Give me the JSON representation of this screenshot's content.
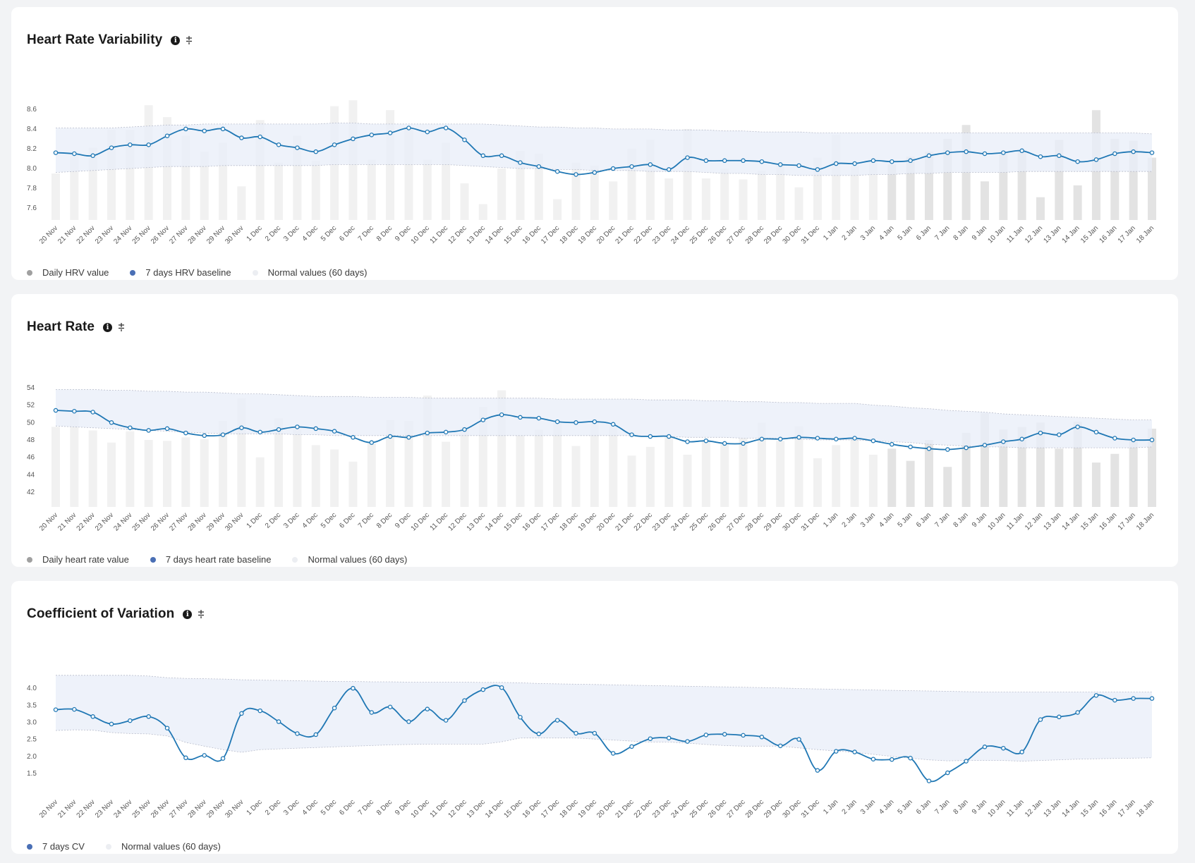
{
  "dates": [
    "20 Nov",
    "21 Nov",
    "22 Nov",
    "23 Nov",
    "24 Nov",
    "25 Nov",
    "26 Nov",
    "27 Nov",
    "28 Nov",
    "29 Nov",
    "30 Nov",
    "1 Dec",
    "2 Dec",
    "3 Dec",
    "4 Dec",
    "5 Dec",
    "6 Dec",
    "7 Dec",
    "8 Dec",
    "9 Dec",
    "10 Dec",
    "11 Dec",
    "12 Dec",
    "13 Dec",
    "14 Dec",
    "15 Dec",
    "16 Dec",
    "17 Dec",
    "18 Dec",
    "19 Dec",
    "20 Dec",
    "21 Dec",
    "22 Dec",
    "23 Dec",
    "24 Dec",
    "25 Dec",
    "26 Dec",
    "27 Dec",
    "28 Dec",
    "29 Dec",
    "30 Dec",
    "31 Dec",
    "1 Jan",
    "2 Jan",
    "3 Jan",
    "4 Jan",
    "5 Jan",
    "6 Jan",
    "7 Jan",
    "8 Jan",
    "9 Jan",
    "10 Jan",
    "11 Jan",
    "12 Jan",
    "13 Jan",
    "14 Jan",
    "15 Jan",
    "16 Jan",
    "17 Jan",
    "18 Jan"
  ],
  "colors": {
    "line": "#1f77b4",
    "band": "#e9eef8",
    "bar_light": "#f1f1f1",
    "bar_dark": "#e3e3e3",
    "grey_dot": "#a0a0a0",
    "blue_dot": "#4a6fb5",
    "light_dot": "#eceef2"
  },
  "icons": {
    "info": "info-icon",
    "toggle": "plus-minus-icon"
  },
  "charts": {
    "hrv": {
      "title": "Heart Rate Variability",
      "info_glyph": "i",
      "legend": [
        {
          "label": "Daily HRV value",
          "color": "#a0a0a0"
        },
        {
          "label": "7 days HRV baseline",
          "color": "#4a6fb5"
        },
        {
          "label": "Normal values (60 days)",
          "color": "#eceef2"
        }
      ]
    },
    "hr": {
      "title": "Heart Rate",
      "info_glyph": "i",
      "legend": [
        {
          "label": "Daily heart rate value",
          "color": "#a0a0a0"
        },
        {
          "label": "7 days heart rate baseline",
          "color": "#4a6fb5"
        },
        {
          "label": "Normal values (60 days)",
          "color": "#eceef2"
        }
      ]
    },
    "cv": {
      "title": "Coefficient of Variation",
      "info_glyph": "i",
      "legend": [
        {
          "label": "7 days CV",
          "color": "#4a6fb5"
        },
        {
          "label": "Normal values (60 days)",
          "color": "#eceef2"
        }
      ]
    }
  },
  "chart_data": [
    {
      "type": "bar",
      "title": "Heart Rate Variability",
      "x": [
        "20 Nov",
        "21 Nov",
        "22 Nov",
        "23 Nov",
        "24 Nov",
        "25 Nov",
        "26 Nov",
        "27 Nov",
        "28 Nov",
        "29 Nov",
        "30 Nov",
        "1 Dec",
        "2 Dec",
        "3 Dec",
        "4 Dec",
        "5 Dec",
        "6 Dec",
        "7 Dec",
        "8 Dec",
        "9 Dec",
        "10 Dec",
        "11 Dec",
        "12 Dec",
        "13 Dec",
        "14 Dec",
        "15 Dec",
        "16 Dec",
        "17 Dec",
        "18 Dec",
        "19 Dec",
        "20 Dec",
        "21 Dec",
        "22 Dec",
        "23 Dec",
        "24 Dec",
        "25 Dec",
        "26 Dec",
        "27 Dec",
        "28 Dec",
        "29 Dec",
        "30 Dec",
        "31 Dec",
        "1 Jan",
        "2 Jan",
        "3 Jan",
        "4 Jan",
        "5 Jan",
        "6 Jan",
        "7 Jan",
        "8 Jan",
        "9 Jan",
        "10 Jan",
        "11 Jan",
        "12 Jan",
        "13 Jan",
        "14 Jan",
        "15 Jan",
        "16 Jan",
        "17 Jan",
        "18 Jan"
      ],
      "ylim": [
        7.48,
        8.72
      ],
      "yticks": [
        7.6,
        7.8,
        8.0,
        8.2,
        8.4,
        8.6
      ],
      "ytick_labels": [
        "7.6",
        "7.8",
        "8.0",
        "8.2",
        "8.4",
        "8.6"
      ],
      "grid": false,
      "legend_position": "bottom-left",
      "series": [
        {
          "name": "Daily HRV value",
          "kind": "bar",
          "values": [
            7.95,
            8.15,
            8.21,
            8.39,
            8.39,
            8.64,
            8.52,
            8.33,
            8.17,
            8.26,
            7.82,
            8.49,
            8.06,
            8.33,
            8.08,
            8.63,
            8.69,
            8.09,
            8.59,
            8.42,
            8.09,
            8.26,
            7.85,
            7.64,
            8.0,
            8.18,
            8.15,
            7.69,
            8.06,
            8.03,
            7.87,
            8.2,
            8.29,
            7.9,
            8.4,
            7.9,
            8.0,
            7.89,
            7.98,
            8.03,
            7.81,
            8.11,
            8.34,
            8.03,
            8.08,
            8.04,
            8.12,
            8.17,
            8.3,
            8.44,
            7.87,
            8.15,
            8.19,
            7.71,
            8.29,
            7.83,
            8.59,
            8.3,
            8.28,
            8.11
          ]
        },
        {
          "name": "7 days HRV baseline",
          "kind": "line",
          "values": [
            8.16,
            8.15,
            8.13,
            8.21,
            8.24,
            8.24,
            8.33,
            8.4,
            8.38,
            8.4,
            8.31,
            8.32,
            8.24,
            8.21,
            8.17,
            8.24,
            8.3,
            8.34,
            8.36,
            8.41,
            8.37,
            8.41,
            8.29,
            8.13,
            8.13,
            8.06,
            8.02,
            7.97,
            7.94,
            7.96,
            8.0,
            8.02,
            8.04,
            7.99,
            8.11,
            8.08,
            8.08,
            8.08,
            8.07,
            8.04,
            8.03,
            7.99,
            8.05,
            8.05,
            8.08,
            8.07,
            8.08,
            8.13,
            8.16,
            8.17,
            8.15,
            8.16,
            8.18,
            8.12,
            8.13,
            8.07,
            8.09,
            8.15,
            8.17,
            8.16
          ]
        },
        {
          "name": "Normal values (60 days)",
          "kind": "band",
          "upper": [
            8.41,
            8.41,
            8.41,
            8.41,
            8.42,
            8.43,
            8.44,
            8.44,
            8.45,
            8.45,
            8.45,
            8.45,
            8.45,
            8.45,
            8.45,
            8.46,
            8.46,
            8.45,
            8.45,
            8.45,
            8.45,
            8.45,
            8.45,
            8.45,
            8.44,
            8.43,
            8.42,
            8.42,
            8.41,
            8.41,
            8.4,
            8.4,
            8.4,
            8.39,
            8.39,
            8.39,
            8.38,
            8.38,
            8.37,
            8.37,
            8.37,
            8.36,
            8.36,
            8.36,
            8.36,
            8.36,
            8.36,
            8.36,
            8.36,
            8.36,
            8.36,
            8.36,
            8.36,
            8.36,
            8.36,
            8.36,
            8.36,
            8.36,
            8.36,
            8.35
          ],
          "lower": [
            7.96,
            7.97,
            7.98,
            7.99,
            8.0,
            8.01,
            8.02,
            8.02,
            8.02,
            8.03,
            8.03,
            8.03,
            8.03,
            8.03,
            8.03,
            8.04,
            8.04,
            8.04,
            8.04,
            8.04,
            8.04,
            8.04,
            8.03,
            8.02,
            8.01,
            8.0,
            8.0,
            7.99,
            7.99,
            7.98,
            7.98,
            7.98,
            7.97,
            7.97,
            7.97,
            7.96,
            7.95,
            7.95,
            7.94,
            7.94,
            7.93,
            7.93,
            7.93,
            7.93,
            7.94,
            7.94,
            7.95,
            7.95,
            7.96,
            7.96,
            7.96,
            7.96,
            7.97,
            7.97,
            7.97,
            7.97,
            7.97,
            7.97,
            7.97,
            7.97
          ]
        }
      ]
    },
    {
      "type": "bar",
      "title": "Heart Rate",
      "x": [
        "20 Nov",
        "21 Nov",
        "22 Nov",
        "23 Nov",
        "24 Nov",
        "25 Nov",
        "26 Nov",
        "27 Nov",
        "28 Nov",
        "29 Nov",
        "30 Nov",
        "1 Dec",
        "2 Dec",
        "3 Dec",
        "4 Dec",
        "5 Dec",
        "6 Dec",
        "7 Dec",
        "8 Dec",
        "9 Dec",
        "10 Dec",
        "11 Dec",
        "12 Dec",
        "13 Dec",
        "14 Dec",
        "15 Dec",
        "16 Dec",
        "17 Dec",
        "18 Dec",
        "19 Dec",
        "20 Dec",
        "21 Dec",
        "22 Dec",
        "23 Dec",
        "24 Dec",
        "25 Dec",
        "26 Dec",
        "27 Dec",
        "28 Dec",
        "29 Dec",
        "30 Dec",
        "31 Dec",
        "1 Jan",
        "2 Jan",
        "3 Jan",
        "4 Jan",
        "5 Jan",
        "6 Jan",
        "7 Jan",
        "8 Jan",
        "9 Jan",
        "10 Jan",
        "11 Jan",
        "12 Jan",
        "13 Jan",
        "14 Jan",
        "15 Jan",
        "16 Jan",
        "17 Jan",
        "18 Jan"
      ],
      "ylim": [
        40.3,
        54.4
      ],
      "yticks": [
        42,
        44,
        46,
        48,
        50,
        52,
        54
      ],
      "ytick_labels": [
        "42",
        "44",
        "46",
        "48",
        "50",
        "52",
        "54"
      ],
      "grid": false,
      "legend_position": "bottom-left",
      "series": [
        {
          "name": "Daily heart rate value",
          "kind": "bar",
          "values": [
            49.5,
            51.0,
            49.1,
            47.7,
            49.0,
            48.0,
            47.9,
            48.3,
            48.1,
            50.2,
            52.8,
            46.0,
            50.5,
            49.2,
            47.4,
            46.9,
            45.5,
            47.6,
            50.3,
            50.2,
            53.1,
            47.8,
            49.5,
            51.8,
            53.7,
            48.5,
            49.2,
            50.0,
            47.3,
            50.2,
            49.5,
            46.2,
            47.2,
            48.3,
            46.3,
            48.0,
            47.6,
            48.2,
            50.0,
            47.9,
            49.6,
            45.9,
            47.4,
            48.0,
            46.3,
            47.0,
            45.6,
            48.0,
            44.9,
            48.8,
            51.1,
            49.2,
            49.5,
            50.0,
            47.0,
            50.1,
            45.4,
            46.4,
            47.9,
            49.3
          ]
        },
        {
          "name": "7 days heart rate baseline",
          "kind": "line",
          "values": [
            51.4,
            51.3,
            51.2,
            50.0,
            49.4,
            49.1,
            49.3,
            48.8,
            48.5,
            48.6,
            49.4,
            48.9,
            49.2,
            49.5,
            49.3,
            49.0,
            48.3,
            47.7,
            48.4,
            48.3,
            48.8,
            48.9,
            49.2,
            50.3,
            50.9,
            50.6,
            50.5,
            50.1,
            50.0,
            50.1,
            49.8,
            48.6,
            48.4,
            48.4,
            47.8,
            47.9,
            47.6,
            47.6,
            48.1,
            48.1,
            48.3,
            48.2,
            48.1,
            48.2,
            47.9,
            47.5,
            47.2,
            47.0,
            46.9,
            47.1,
            47.4,
            47.8,
            48.1,
            48.8,
            48.6,
            49.5,
            48.9,
            48.2,
            48.0,
            48.0
          ]
        },
        {
          "name": "Normal values (60 days)",
          "kind": "band",
          "upper": [
            53.8,
            53.8,
            53.8,
            53.7,
            53.7,
            53.6,
            53.6,
            53.5,
            53.5,
            53.4,
            53.3,
            53.3,
            53.2,
            53.1,
            53.0,
            53.0,
            53.0,
            52.9,
            52.9,
            52.9,
            52.8,
            52.8,
            52.8,
            52.8,
            52.8,
            52.8,
            52.8,
            52.7,
            52.7,
            52.7,
            52.7,
            52.7,
            52.6,
            52.6,
            52.6,
            52.5,
            52.5,
            52.4,
            52.4,
            52.3,
            52.3,
            52.2,
            52.2,
            52.2,
            52.0,
            51.9,
            51.7,
            51.6,
            51.4,
            51.3,
            51.2,
            51.0,
            50.9,
            50.8,
            50.7,
            50.6,
            50.5,
            50.4,
            50.3,
            50.3
          ],
          "lower": [
            49.6,
            49.5,
            49.4,
            49.3,
            49.2,
            49.1,
            49.0,
            48.9,
            48.8,
            48.7,
            48.7,
            48.7,
            48.7,
            48.6,
            48.6,
            48.5,
            48.5,
            48.5,
            48.5,
            48.5,
            48.5,
            48.5,
            48.5,
            48.5,
            48.5,
            48.5,
            48.5,
            48.5,
            48.5,
            48.5,
            48.5,
            48.5,
            48.4,
            48.4,
            48.3,
            48.3,
            48.3,
            48.2,
            48.2,
            48.2,
            48.1,
            48.0,
            48.0,
            48.0,
            47.9,
            47.8,
            47.7,
            47.5,
            47.4,
            47.3,
            47.2,
            47.2,
            47.1,
            47.1,
            47.1,
            47.1,
            47.1,
            47.1,
            47.1,
            47.2
          ]
        }
      ]
    },
    {
      "type": "line",
      "title": "Coefficient of Variation",
      "x": [
        "20 Nov",
        "21 Nov",
        "22 Nov",
        "23 Nov",
        "24 Nov",
        "25 Nov",
        "26 Nov",
        "27 Nov",
        "28 Nov",
        "29 Nov",
        "30 Nov",
        "1 Dec",
        "2 Dec",
        "3 Dec",
        "4 Dec",
        "5 Dec",
        "6 Dec",
        "7 Dec",
        "8 Dec",
        "9 Dec",
        "10 Dec",
        "11 Dec",
        "12 Dec",
        "13 Dec",
        "14 Dec",
        "15 Dec",
        "16 Dec",
        "17 Dec",
        "18 Dec",
        "19 Dec",
        "20 Dec",
        "21 Dec",
        "22 Dec",
        "23 Dec",
        "24 Dec",
        "25 Dec",
        "26 Dec",
        "27 Dec",
        "28 Dec",
        "29 Dec",
        "30 Dec",
        "31 Dec",
        "1 Jan",
        "2 Jan",
        "3 Jan",
        "4 Jan",
        "5 Jan",
        "6 Jan",
        "7 Jan",
        "8 Jan",
        "9 Jan",
        "10 Jan",
        "11 Jan",
        "12 Jan",
        "13 Jan",
        "14 Jan",
        "15 Jan",
        "16 Jan",
        "17 Jan",
        "18 Jan"
      ],
      "ylim": [
        0.9,
        4.5
      ],
      "yticks": [
        1.5,
        2.0,
        2.5,
        3.0,
        3.5,
        4.0
      ],
      "ytick_labels": [
        "1.5",
        "2.0",
        "2.5",
        "3.0",
        "3.5",
        "4.0"
      ],
      "grid": false,
      "legend_position": "bottom-left",
      "series": [
        {
          "name": "7 days CV",
          "kind": "line",
          "values": [
            3.37,
            3.38,
            3.17,
            2.95,
            3.05,
            3.17,
            2.83,
            1.96,
            2.03,
            1.94,
            3.26,
            3.34,
            3.02,
            2.67,
            2.64,
            3.42,
            4.0,
            3.29,
            3.45,
            3.02,
            3.39,
            3.06,
            3.64,
            3.96,
            4.02,
            3.15,
            2.66,
            3.06,
            2.68,
            2.68,
            2.09,
            2.29,
            2.52,
            2.54,
            2.44,
            2.63,
            2.65,
            2.62,
            2.57,
            2.31,
            2.5,
            1.59,
            2.15,
            2.13,
            1.92,
            1.91,
            1.95,
            1.28,
            1.52,
            1.86,
            2.28,
            2.24,
            2.13,
            3.08,
            3.16,
            3.29,
            3.79,
            3.65,
            3.7,
            3.7
          ]
        },
        {
          "name": "Normal values (60 days)",
          "kind": "band",
          "upper": [
            4.38,
            4.38,
            4.38,
            4.38,
            4.38,
            4.36,
            4.31,
            4.29,
            4.28,
            4.27,
            4.25,
            4.24,
            4.23,
            4.22,
            4.21,
            4.2,
            4.2,
            4.19,
            4.19,
            4.18,
            4.18,
            4.18,
            4.18,
            4.17,
            4.17,
            4.16,
            4.14,
            4.13,
            4.12,
            4.11,
            4.1,
            4.09,
            4.08,
            4.07,
            4.06,
            4.05,
            4.04,
            4.03,
            4.02,
            4.01,
            3.99,
            3.98,
            3.97,
            3.96,
            3.95,
            3.94,
            3.93,
            3.92,
            3.91,
            3.9,
            3.89,
            3.89,
            3.89,
            3.89,
            3.89,
            3.89,
            3.89,
            3.89,
            3.89,
            3.89
          ],
          "lower": [
            2.76,
            2.78,
            2.77,
            2.7,
            2.67,
            2.66,
            2.6,
            2.41,
            2.3,
            2.2,
            2.12,
            2.2,
            2.22,
            2.24,
            2.26,
            2.28,
            2.3,
            2.32,
            2.34,
            2.35,
            2.36,
            2.36,
            2.36,
            2.36,
            2.43,
            2.54,
            2.54,
            2.54,
            2.54,
            2.51,
            2.48,
            2.45,
            2.42,
            2.42,
            2.39,
            2.35,
            2.32,
            2.3,
            2.3,
            2.3,
            2.25,
            2.2,
            2.16,
            2.12,
            2.06,
            2.0,
            1.95,
            1.9,
            1.87,
            1.88,
            1.88,
            1.88,
            1.86,
            1.88,
            1.9,
            1.92,
            1.93,
            1.94,
            1.95,
            1.96
          ]
        }
      ]
    }
  ]
}
